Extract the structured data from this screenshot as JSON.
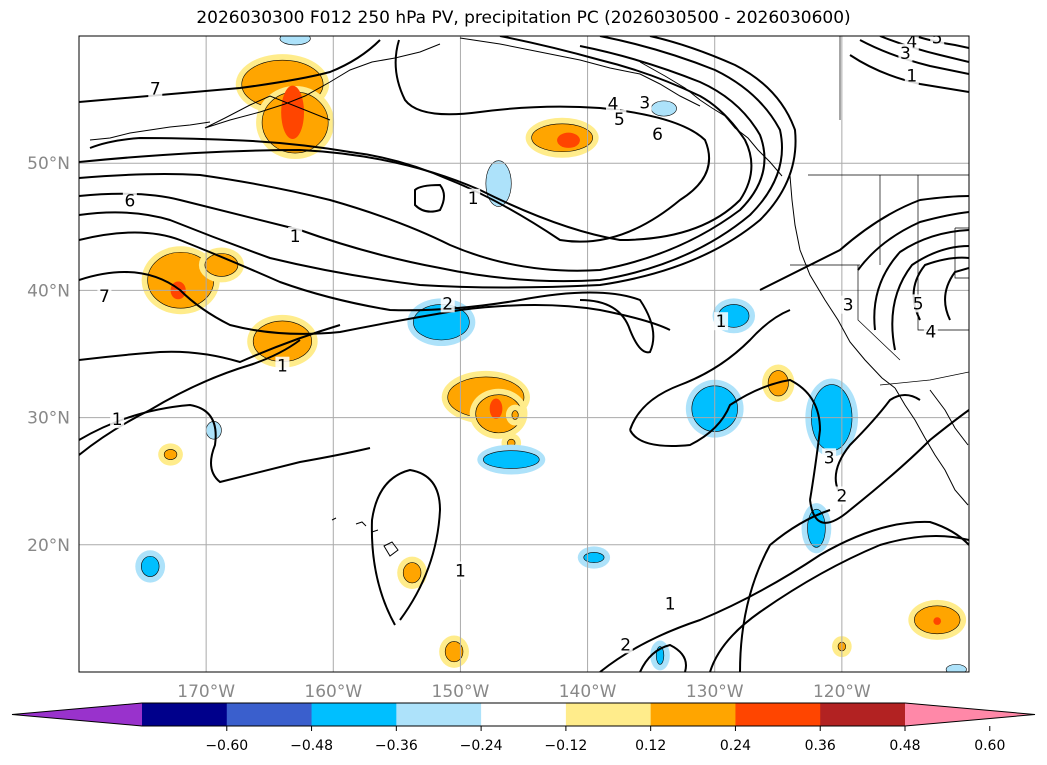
{
  "title": "2026030300 F012 250 hPa PV, precipitation PC (2026030500 - 2026030600)",
  "map": {
    "lon_range": [
      -180,
      -110
    ],
    "lat_range": [
      10,
      60
    ],
    "lon_labels": [
      {
        "lon": -170,
        "text": "170°W"
      },
      {
        "lon": -160,
        "text": "160°W"
      },
      {
        "lon": -150,
        "text": "150°W"
      },
      {
        "lon": -140,
        "text": "140°W"
      },
      {
        "lon": -130,
        "text": "130°W"
      },
      {
        "lon": -120,
        "text": "120°W"
      }
    ],
    "lat_labels": [
      {
        "lat": 50,
        "text": "50°N"
      },
      {
        "lat": 40,
        "text": "40°N"
      },
      {
        "lat": 30,
        "text": "30°N"
      },
      {
        "lat": 20,
        "text": "20°N"
      }
    ],
    "gridlines": true,
    "contour_labels": [
      {
        "text": "7",
        "lon": -174,
        "lat": 55.8
      },
      {
        "text": "6",
        "lon": -176,
        "lat": 47.0
      },
      {
        "text": "7",
        "lon": -178,
        "lat": 39.5
      },
      {
        "text": "1",
        "lon": -163,
        "lat": 44.2
      },
      {
        "text": "1",
        "lon": -149,
        "lat": 47.2
      },
      {
        "text": "2",
        "lon": -151,
        "lat": 38.9
      },
      {
        "text": "1",
        "lon": -164,
        "lat": 34.0
      },
      {
        "text": "1",
        "lon": -177,
        "lat": 29.8
      },
      {
        "text": "4",
        "lon": -138,
        "lat": 54.6
      },
      {
        "text": "3",
        "lon": -135.5,
        "lat": 54.7
      },
      {
        "text": "5",
        "lon": -137.5,
        "lat": 53.4
      },
      {
        "text": "6",
        "lon": -134.5,
        "lat": 52.2
      },
      {
        "text": "5",
        "lon": -112.5,
        "lat": 59.8
      },
      {
        "text": "4",
        "lon": -114.5,
        "lat": 59.5
      },
      {
        "text": "3",
        "lon": -115,
        "lat": 58.6
      },
      {
        "text": "1",
        "lon": -114.5,
        "lat": 56.8
      },
      {
        "text": "1",
        "lon": -129.5,
        "lat": 37.5
      },
      {
        "text": "3",
        "lon": -119.5,
        "lat": 38.8
      },
      {
        "text": "5",
        "lon": -114,
        "lat": 38.9
      },
      {
        "text": "4",
        "lon": -113,
        "lat": 36.7
      },
      {
        "text": "3",
        "lon": -121,
        "lat": 26.8
      },
      {
        "text": "2",
        "lon": -120,
        "lat": 23.8
      },
      {
        "text": "1",
        "lon": -150,
        "lat": 17.9
      },
      {
        "text": "1",
        "lon": -133.5,
        "lat": 15.3
      },
      {
        "text": "2",
        "lon": -137,
        "lat": 12.1
      }
    ],
    "precip_blobs": [
      {
        "lon": -164,
        "lat": 56.2,
        "rx": 3.2,
        "ry": 1.9,
        "level": "orange"
      },
      {
        "lon": -163,
        "lat": 53.2,
        "rx": 2.6,
        "ry": 2.4,
        "level": "orange"
      },
      {
        "lon": -163.2,
        "lat": 54.0,
        "rx": 0.9,
        "ry": 2.1,
        "level": "red"
      },
      {
        "lon": -142,
        "lat": 52.0,
        "rx": 2.4,
        "ry": 1.1,
        "level": "orange"
      },
      {
        "lon": -141.5,
        "lat": 51.8,
        "rx": 0.9,
        "ry": 0.6,
        "level": "red"
      },
      {
        "lon": -172,
        "lat": 40.8,
        "rx": 2.6,
        "ry": 2.2,
        "level": "orange"
      },
      {
        "lon": -168.8,
        "lat": 42.0,
        "rx": 1.3,
        "ry": 0.9,
        "level": "orange"
      },
      {
        "lon": -172.2,
        "lat": 40.0,
        "rx": 0.6,
        "ry": 0.7,
        "level": "red"
      },
      {
        "lon": -164,
        "lat": 36.0,
        "rx": 2.3,
        "ry": 1.6,
        "level": "orange"
      },
      {
        "lon": -148,
        "lat": 31.6,
        "rx": 3.0,
        "ry": 1.6,
        "level": "orange"
      },
      {
        "lon": -147,
        "lat": 30.3,
        "rx": 1.8,
        "ry": 1.5,
        "level": "orange"
      },
      {
        "lon": -147.2,
        "lat": 30.7,
        "rx": 0.5,
        "ry": 0.8,
        "level": "red"
      },
      {
        "lon": -145.7,
        "lat": 30.2,
        "rx": 0.25,
        "ry": 0.35,
        "level": "orange"
      },
      {
        "lon": -125,
        "lat": 32.7,
        "rx": 0.8,
        "ry": 1.0,
        "level": "orange"
      },
      {
        "lon": -112.5,
        "lat": 14.1,
        "rx": 1.8,
        "ry": 1.1,
        "level": "orange"
      },
      {
        "lon": -112.5,
        "lat": 14.0,
        "rx": 0.3,
        "ry": 0.3,
        "level": "red"
      },
      {
        "lon": -172.8,
        "lat": 27.1,
        "rx": 0.5,
        "ry": 0.4,
        "level": "orange"
      },
      {
        "lon": -146,
        "lat": 28.0,
        "rx": 0.3,
        "ry": 0.3,
        "level": "orange"
      },
      {
        "lon": -153.8,
        "lat": 17.8,
        "rx": 0.7,
        "ry": 0.8,
        "level": "orange"
      },
      {
        "lon": -150.5,
        "lat": 11.6,
        "rx": 0.7,
        "ry": 0.8,
        "level": "orange"
      },
      {
        "lon": -120,
        "lat": 12.0,
        "rx": 0.3,
        "ry": 0.35,
        "level": "orange"
      },
      {
        "lon": -151.5,
        "lat": 37.5,
        "rx": 2.2,
        "ry": 1.4,
        "level": "blue"
      },
      {
        "lon": -146,
        "lat": 26.7,
        "rx": 2.2,
        "ry": 0.7,
        "level": "blue"
      },
      {
        "lon": -130,
        "lat": 30.7,
        "rx": 1.8,
        "ry": 1.8,
        "level": "blue"
      },
      {
        "lon": -128.5,
        "lat": 38.0,
        "rx": 1.2,
        "ry": 0.9,
        "level": "blue"
      },
      {
        "lon": -120.8,
        "lat": 30.0,
        "rx": 1.6,
        "ry": 2.6,
        "level": "blue"
      },
      {
        "lon": -122,
        "lat": 21.3,
        "rx": 0.7,
        "ry": 1.5,
        "level": "blue"
      },
      {
        "lon": -147,
        "lat": 48.4,
        "rx": 1.0,
        "ry": 1.8,
        "level": "lightblue"
      },
      {
        "lon": -163,
        "lat": 59.8,
        "rx": 1.2,
        "ry": 0.5,
        "level": "lightblue"
      },
      {
        "lon": -169.4,
        "lat": 29.0,
        "rx": 0.6,
        "ry": 0.7,
        "level": "lightblue"
      },
      {
        "lon": -174.4,
        "lat": 18.3,
        "rx": 0.7,
        "ry": 0.8,
        "level": "blue"
      },
      {
        "lon": -139.5,
        "lat": 19.0,
        "rx": 0.8,
        "ry": 0.4,
        "level": "blue"
      },
      {
        "lon": -134,
        "lat": 54.3,
        "rx": 1.0,
        "ry": 0.6,
        "level": "lightblue"
      },
      {
        "lon": -134.3,
        "lat": 11.3,
        "rx": 0.3,
        "ry": 0.7,
        "level": "blue"
      },
      {
        "lon": -111,
        "lat": 10.2,
        "rx": 0.8,
        "ry": 0.4,
        "level": "lightblue"
      }
    ]
  },
  "colorbar": {
    "colors": [
      "#9932CC",
      "#00008B",
      "#3A5FCD",
      "#00BFFF",
      "#ADE2FA",
      "#FFFFFF",
      "#FFEC8B",
      "#FFA500",
      "#FF4500",
      "#B22222",
      "#FF88A8"
    ],
    "ticks": [
      {
        "value": -0.6,
        "label": "−0.60"
      },
      {
        "value": -0.48,
        "label": "−0.48"
      },
      {
        "value": -0.36,
        "label": "−0.36"
      },
      {
        "value": -0.24,
        "label": "−0.24"
      },
      {
        "value": -0.12,
        "label": "−0.12"
      },
      {
        "value": 0.12,
        "label": "0.12"
      },
      {
        "value": 0.24,
        "label": "0.24"
      },
      {
        "value": 0.36,
        "label": "0.36"
      },
      {
        "value": 0.48,
        "label": "0.48"
      },
      {
        "value": 0.6,
        "label": "0.60"
      }
    ]
  },
  "level_colors": {
    "orange": "#FFA500",
    "red": "#FF4500",
    "blue": "#00BFFF",
    "lightblue": "#ADE2FA",
    "halo_warm": "#FFEC8B",
    "halo_cool": "#ADE2FA"
  }
}
